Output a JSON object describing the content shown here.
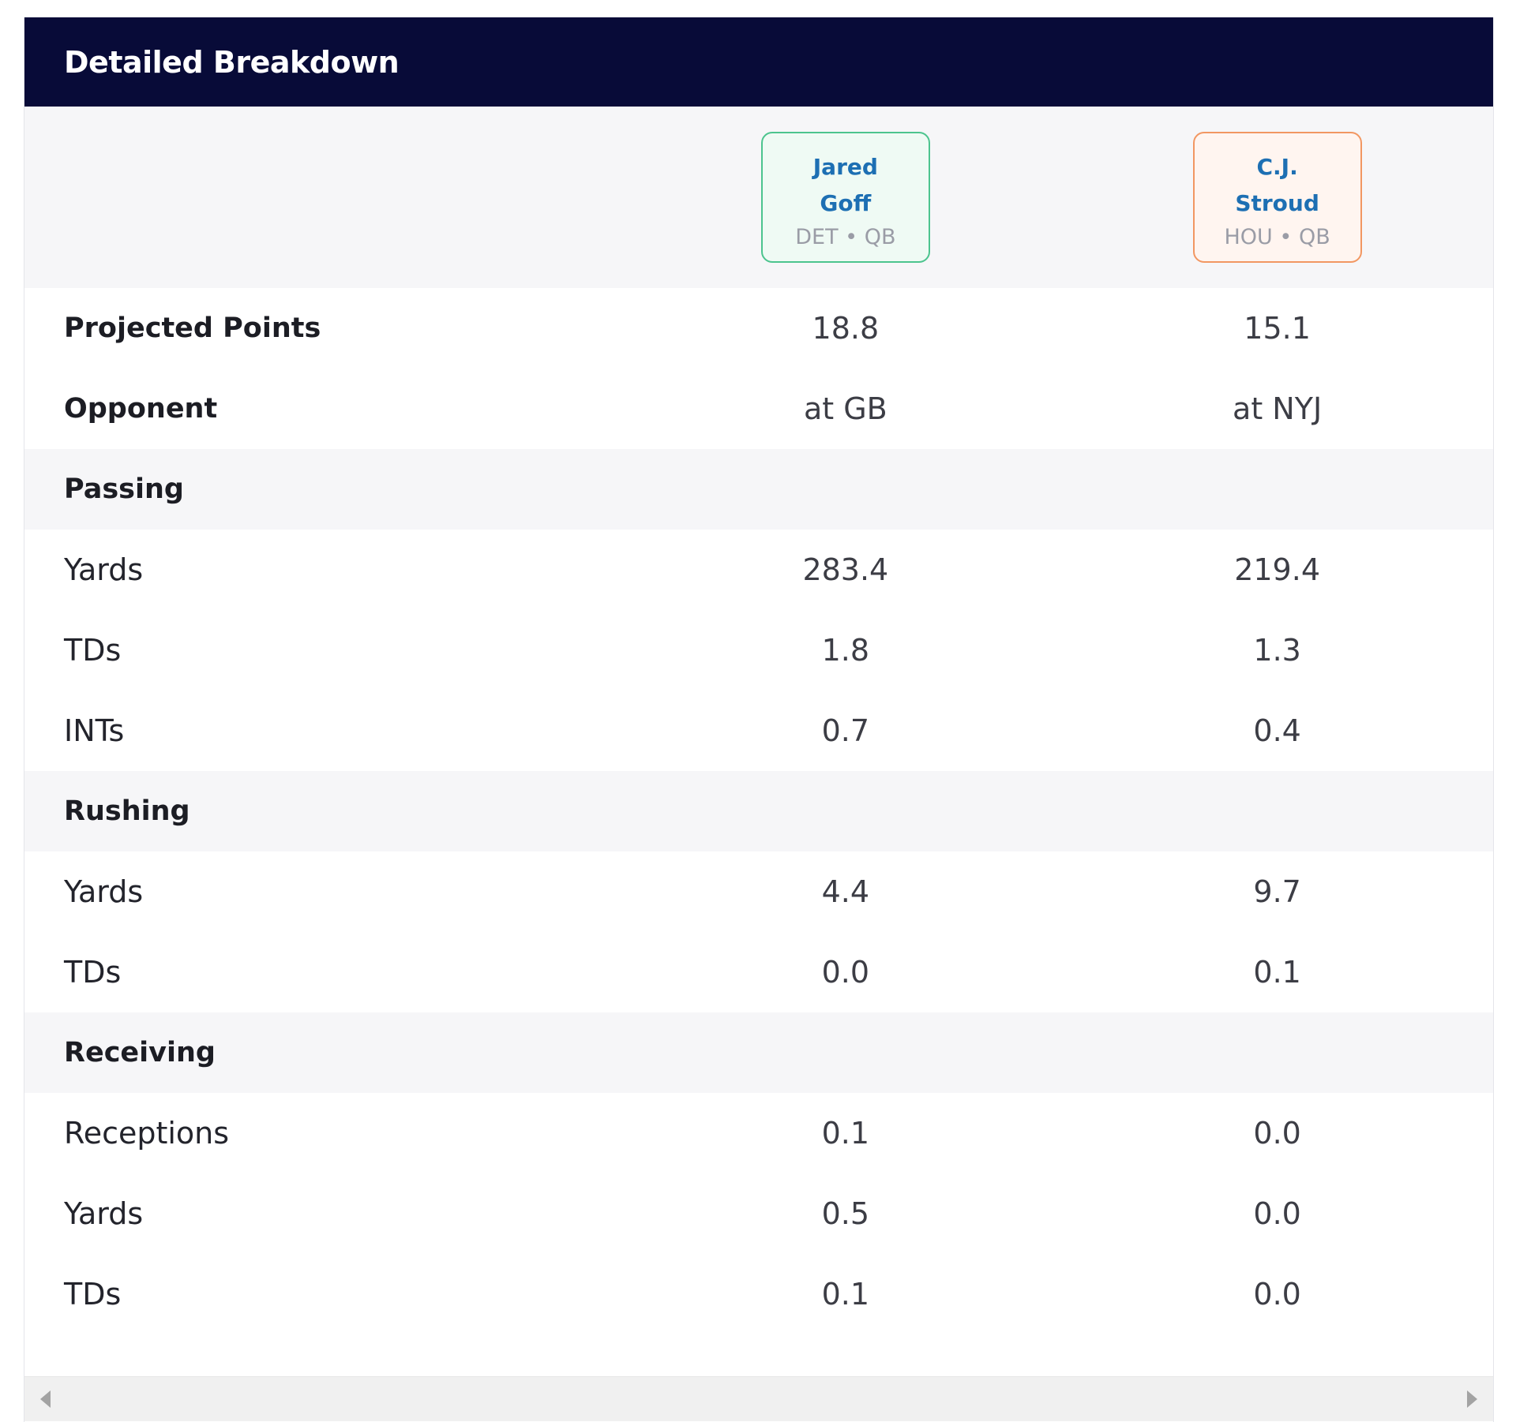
{
  "header": {
    "title": "Detailed Breakdown"
  },
  "players": [
    {
      "first": "Jared",
      "last": "Goff",
      "team": "DET",
      "sep": "•",
      "pos": "QB"
    },
    {
      "first": "C.J.",
      "last": "Stroud",
      "team": "HOU",
      "sep": "•",
      "pos": "QB"
    }
  ],
  "summary": {
    "projected": {
      "label": "Projected Points",
      "p1": "18.8",
      "p2": "15.1"
    },
    "opponent": {
      "label": "Opponent",
      "p1": "at GB",
      "p2": "at NYJ"
    }
  },
  "passing": {
    "title": "Passing",
    "rows": [
      {
        "label": "Yards",
        "p1": "283.4",
        "p2": "219.4"
      },
      {
        "label": "TDs",
        "p1": "1.8",
        "p2": "1.3"
      },
      {
        "label": "INTs",
        "p1": "0.7",
        "p2": "0.4"
      }
    ]
  },
  "rushing": {
    "title": "Rushing",
    "rows": [
      {
        "label": "Yards",
        "p1": "4.4",
        "p2": "9.7"
      },
      {
        "label": "TDs",
        "p1": "0.0",
        "p2": "0.1"
      }
    ]
  },
  "receiving": {
    "title": "Receiving",
    "rows": [
      {
        "label": "Receptions",
        "p1": "0.1",
        "p2": "0.0"
      },
      {
        "label": "Yards",
        "p1": "0.5",
        "p2": "0.0"
      },
      {
        "label": "TDs",
        "p1": "0.1",
        "p2": "0.0"
      }
    ]
  },
  "colors": {
    "header_bg": "#080b38",
    "player1_border": "#4cc48e",
    "player2_border": "#f29762",
    "player_name": "#1d6fb3"
  }
}
